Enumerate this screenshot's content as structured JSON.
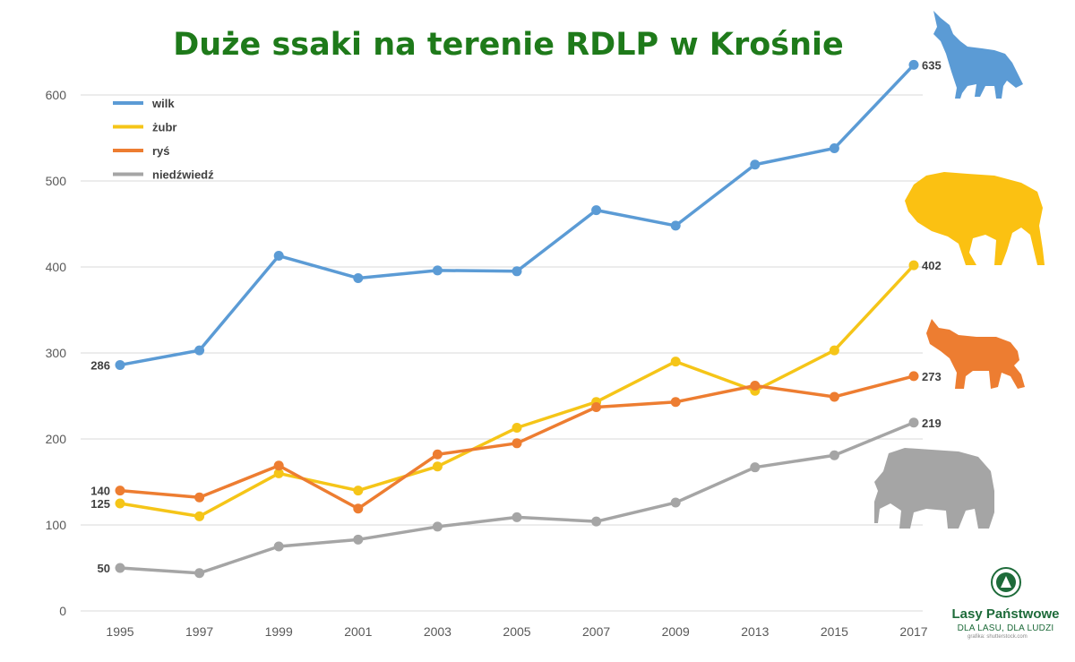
{
  "chart_data": {
    "type": "line",
    "title": "Duże ssaki na terenie RDLP w Krośnie",
    "categories": [
      "1995",
      "1997",
      "1999",
      "2001",
      "2003",
      "2005",
      "2007",
      "2009",
      "2013",
      "2015",
      "2017"
    ],
    "ylim": [
      0,
      600
    ],
    "yticks": [
      0,
      100,
      200,
      300,
      400,
      500,
      600
    ],
    "grid": true,
    "legend_position": "top-left",
    "series": [
      {
        "name": "wilk",
        "color": "#5b9bd5",
        "values": [
          286,
          303,
          413,
          387,
          396,
          395,
          466,
          448,
          519,
          538,
          635
        ]
      },
      {
        "name": "żubr",
        "color": "#f5c518",
        "values": [
          125,
          110,
          160,
          140,
          168,
          213,
          243,
          290,
          256,
          303,
          402
        ]
      },
      {
        "name": "ryś",
        "color": "#ed7d31",
        "values": [
          140,
          132,
          169,
          119,
          182,
          195,
          237,
          243,
          262,
          249,
          273
        ]
      },
      {
        "name": "niedźwiedź",
        "color": "#a5a5a5",
        "values": [
          50,
          44,
          75,
          83,
          98,
          109,
          104,
          126,
          167,
          181,
          219
        ]
      }
    ],
    "data_labels": [
      {
        "series": 0,
        "index": 0,
        "text": "286"
      },
      {
        "series": 0,
        "index": 10,
        "text": "635"
      },
      {
        "series": 1,
        "index": 0,
        "text": "125"
      },
      {
        "series": 1,
        "index": 10,
        "text": "402"
      },
      {
        "series": 2,
        "index": 0,
        "text": "140"
      },
      {
        "series": 2,
        "index": 10,
        "text": "273"
      },
      {
        "series": 3,
        "index": 0,
        "text": "50"
      },
      {
        "series": 3,
        "index": 10,
        "text": "219"
      }
    ]
  },
  "logo": {
    "brand": "Lasy Państwowe",
    "tagline": "DLA LASU, DLA LUDZI"
  },
  "credit": "grafika: shutterstock.com",
  "animal_icons": [
    "wolf-icon",
    "bison-icon",
    "lynx-icon",
    "bear-icon"
  ]
}
